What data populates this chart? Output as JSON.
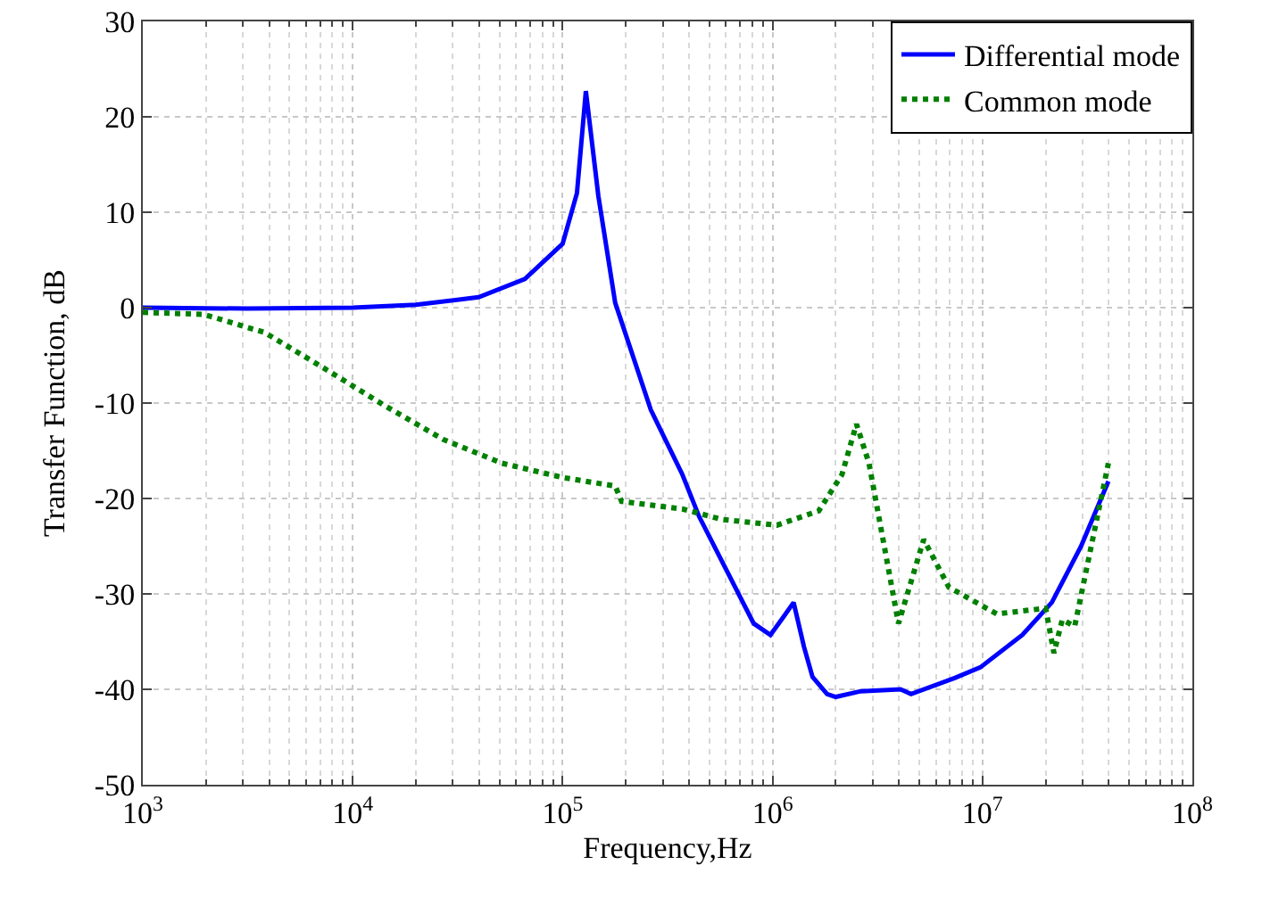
{
  "chart_data": {
    "type": "line",
    "xlabel": "Frequency,Hz",
    "ylabel": "Transfer Function, dB",
    "log": "x",
    "xlim": [
      1000,
      100000000
    ],
    "xticks": [
      {
        "value": 1000,
        "label": "10$^{3}$"
      },
      {
        "value": 10000,
        "label": "10$^{4}$"
      },
      {
        "value": 100000,
        "label": "10$^{5}$"
      },
      {
        "value": 1000000,
        "label": "10$^{6}$"
      },
      {
        "value": 10000000,
        "label": "10$^{7}$"
      },
      {
        "value": 100000000,
        "label": "10$^{8}$"
      }
    ],
    "ylim": [
      -50,
      30
    ],
    "yticks": [
      -50,
      -40,
      -30,
      -20,
      -10,
      0,
      10,
      20,
      30
    ],
    "grid": true,
    "legend": "top right",
    "marker": "none",
    "series": [
      {
        "name": "Differential mode",
        "color": "#0000ff",
        "line_style": "solid",
        "x": [
          1000,
          3160,
          10000,
          20000,
          39800,
          66100,
          100000,
          117000,
          129000,
          148000,
          178000,
          263000,
          372000,
          447000,
          813000,
          977000,
          1120000,
          1260000,
          1410000,
          1550000,
          1820000,
          2000000,
          2630000,
          4070000,
          4570000,
          7410000,
          9770000,
          15500000,
          21400000,
          29500000,
          39800000
        ],
        "values": [
          0,
          -0.1,
          0,
          0.3,
          1.1,
          3,
          6.7,
          12,
          22.7,
          11.7,
          0.5,
          -10.7,
          -17.5,
          -21.9,
          -33.1,
          -34.3,
          -32.5,
          -30.9,
          -35.5,
          -38.7,
          -40.5,
          -40.8,
          -40.2,
          -40,
          -40.5,
          -38.8,
          -37.7,
          -34.3,
          -30.9,
          -25,
          -18.2
        ]
      },
      {
        "name": "Common mode",
        "color": "#008000",
        "line_style": "dotted",
        "x": [
          1000,
          1950,
          3800,
          7240,
          13800,
          26900,
          51300,
          100000,
          178000,
          191000,
          372000,
          575000,
          1050000,
          1660000,
          2140000,
          2510000,
          2880000,
          3980000,
          5250000,
          6920000,
          11700000,
          20000000,
          21900000,
          24000000,
          27500000,
          39800000
        ],
        "values": [
          -0.5,
          -0.7,
          -2.6,
          -6.3,
          -10.1,
          -13.8,
          -16.3,
          -17.8,
          -18.7,
          -20.3,
          -21.1,
          -22.2,
          -22.8,
          -21.3,
          -17.5,
          -12.2,
          -16.3,
          -33.1,
          -24.3,
          -29.3,
          -32.1,
          -31.5,
          -36.2,
          -32.7,
          -33.4,
          -16.3
        ]
      }
    ]
  }
}
